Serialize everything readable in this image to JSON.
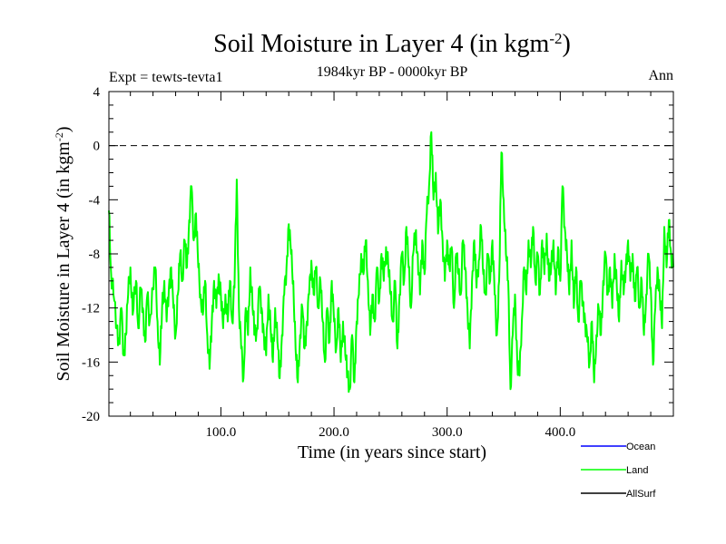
{
  "chart_data": {
    "type": "line",
    "title_main": "Soil Moisture in Layer 4 (in kgm",
    "title_sup": "-2",
    "title_close": ")",
    "subtitle": "1984kyr BP - 0000kyr BP",
    "expt_label": "Expt = tewts-tevta1",
    "season_label": "Ann",
    "xlabel": "Time (in years since start)",
    "ylabel_main": "Soil Moisture in Layer 4 (in kgm",
    "ylabel_sup": "-2",
    "ylabel_close": ")",
    "xlim": [
      1,
      500
    ],
    "ylim": [
      -20,
      4
    ],
    "x_ticks": [
      100,
      200,
      300,
      400
    ],
    "x_tick_labels": [
      "100.0",
      "200.0",
      "300.0",
      "400.0"
    ],
    "y_ticks": [
      4,
      0,
      -4,
      -8,
      -12,
      -16,
      -20
    ],
    "y_tick_labels": [
      "4",
      "0",
      "-4",
      "-8",
      "-12",
      "-16",
      "-20"
    ],
    "reference_line": {
      "y": 0,
      "style": "dashed"
    },
    "legend": [
      {
        "name": "Ocean",
        "color": "#0000ff"
      },
      {
        "name": "Land",
        "color": "#00ff00"
      },
      {
        "name": "AllSurf",
        "color": "#000000"
      }
    ],
    "series": [
      {
        "name": "Land",
        "color": "#00ff00",
        "anchors": [
          [
            1,
            -4.8
          ],
          [
            3,
            -9.5
          ],
          [
            5,
            -11
          ],
          [
            8,
            -13.5
          ],
          [
            10,
            -14.5
          ],
          [
            12,
            -12
          ],
          [
            14,
            -15.5
          ],
          [
            16,
            -14
          ],
          [
            18,
            -11
          ],
          [
            20,
            -9
          ],
          [
            22,
            -12.5
          ],
          [
            25,
            -10
          ],
          [
            27,
            -13.5
          ],
          [
            29,
            -10.5
          ],
          [
            31,
            -12
          ],
          [
            33,
            -14.5
          ],
          [
            35,
            -11
          ],
          [
            37,
            -13
          ],
          [
            40,
            -10.5
          ],
          [
            42,
            -9
          ],
          [
            44,
            -13
          ],
          [
            46,
            -16.2
          ],
          [
            48,
            -12
          ],
          [
            50,
            -10
          ],
          [
            52,
            -13
          ],
          [
            54,
            -10.5
          ],
          [
            56,
            -9
          ],
          [
            58,
            -12
          ],
          [
            60,
            -14
          ],
          [
            62,
            -11
          ],
          [
            64,
            -8
          ],
          [
            66,
            -10
          ],
          [
            68,
            -7
          ],
          [
            70,
            -9
          ],
          [
            72,
            -5.5
          ],
          [
            74,
            -3
          ],
          [
            76,
            -7
          ],
          [
            78,
            -5
          ],
          [
            80,
            -9
          ],
          [
            82,
            -11
          ],
          [
            84,
            -12.5
          ],
          [
            86,
            -10
          ],
          [
            88,
            -14
          ],
          [
            90,
            -16.5
          ],
          [
            92,
            -13
          ],
          [
            94,
            -10
          ],
          [
            96,
            -12
          ],
          [
            98,
            -9.5
          ],
          [
            100,
            -11
          ],
          [
            102,
            -13.5
          ],
          [
            104,
            -11
          ],
          [
            106,
            -13
          ],
          [
            108,
            -10
          ],
          [
            110,
            -13
          ],
          [
            112,
            -10.5
          ],
          [
            114,
            -2.5
          ],
          [
            116,
            -12
          ],
          [
            118,
            -15
          ],
          [
            120,
            -17.2
          ],
          [
            122,
            -12
          ],
          [
            124,
            -14
          ],
          [
            126,
            -9
          ],
          [
            128,
            -12
          ],
          [
            130,
            -14
          ],
          [
            132,
            -13.5
          ],
          [
            134,
            -10.5
          ],
          [
            136,
            -12
          ],
          [
            138,
            -14
          ],
          [
            140,
            -15.5
          ],
          [
            142,
            -11
          ],
          [
            144,
            -13.5
          ],
          [
            146,
            -16
          ],
          [
            148,
            -12
          ],
          [
            150,
            -14.5
          ],
          [
            152,
            -17.2
          ],
          [
            154,
            -14
          ],
          [
            156,
            -11
          ],
          [
            158,
            -9
          ],
          [
            160,
            -5.8
          ],
          [
            162,
            -8
          ],
          [
            164,
            -10
          ],
          [
            166,
            -15
          ],
          [
            168,
            -17.5
          ],
          [
            170,
            -14
          ],
          [
            172,
            -12
          ],
          [
            174,
            -15
          ],
          [
            176,
            -13
          ],
          [
            178,
            -11
          ],
          [
            180,
            -8.5
          ],
          [
            182,
            -11
          ],
          [
            184,
            -9
          ],
          [
            186,
            -12
          ],
          [
            188,
            -10
          ],
          [
            190,
            -13
          ],
          [
            192,
            -16
          ],
          [
            194,
            -12
          ],
          [
            196,
            -14.5
          ],
          [
            198,
            -10
          ],
          [
            200,
            -13
          ],
          [
            202,
            -15
          ],
          [
            204,
            -12
          ],
          [
            206,
            -16
          ],
          [
            208,
            -13
          ],
          [
            210,
            -15.5
          ],
          [
            212,
            -17
          ],
          [
            214,
            -18
          ],
          [
            216,
            -14
          ],
          [
            218,
            -17.5
          ],
          [
            220,
            -13
          ],
          [
            222,
            -11
          ],
          [
            224,
            -8
          ],
          [
            226,
            -9.5
          ],
          [
            228,
            -7
          ],
          [
            230,
            -10
          ],
          [
            232,
            -14
          ],
          [
            234,
            -11
          ],
          [
            236,
            -13
          ],
          [
            238,
            -9
          ],
          [
            240,
            -11.5
          ],
          [
            242,
            -8
          ],
          [
            244,
            -10
          ],
          [
            246,
            -7.5
          ],
          [
            248,
            -9
          ],
          [
            250,
            -11
          ],
          [
            252,
            -13
          ],
          [
            254,
            -10
          ],
          [
            256,
            -15
          ],
          [
            258,
            -11
          ],
          [
            260,
            -8
          ],
          [
            262,
            -10
          ],
          [
            264,
            -6
          ],
          [
            266,
            -9
          ],
          [
            268,
            -12
          ],
          [
            270,
            -8
          ],
          [
            272,
            -6.5
          ],
          [
            274,
            -8
          ],
          [
            276,
            -11
          ],
          [
            278,
            -7
          ],
          [
            280,
            -9.5
          ],
          [
            282,
            -5
          ],
          [
            284,
            -3
          ],
          [
            286,
            1
          ],
          [
            288,
            -4
          ],
          [
            290,
            -2
          ],
          [
            292,
            -6.5
          ],
          [
            294,
            -4
          ],
          [
            296,
            -7
          ],
          [
            298,
            -10
          ],
          [
            300,
            -7
          ],
          [
            302,
            -9
          ],
          [
            304,
            -7.5
          ],
          [
            306,
            -12
          ],
          [
            308,
            -8
          ],
          [
            310,
            -9.5
          ],
          [
            312,
            -11
          ],
          [
            314,
            -7
          ],
          [
            316,
            -9
          ],
          [
            318,
            -12
          ],
          [
            320,
            -15
          ],
          [
            322,
            -10
          ],
          [
            324,
            -7
          ],
          [
            326,
            -10.5
          ],
          [
            328,
            -8.5
          ],
          [
            330,
            -6
          ],
          [
            332,
            -9.5
          ],
          [
            334,
            -11
          ],
          [
            336,
            -8
          ],
          [
            338,
            -10
          ],
          [
            340,
            -7
          ],
          [
            342,
            -11
          ],
          [
            344,
            -14
          ],
          [
            346,
            -10
          ],
          [
            348,
            -0.5
          ],
          [
            350,
            -4
          ],
          [
            352,
            -8
          ],
          [
            354,
            -10
          ],
          [
            356,
            -18
          ],
          [
            358,
            -14
          ],
          [
            360,
            -11
          ],
          [
            362,
            -16
          ],
          [
            364,
            -17
          ],
          [
            366,
            -13
          ],
          [
            368,
            -9
          ],
          [
            370,
            -11
          ],
          [
            372,
            -7
          ],
          [
            374,
            -9
          ],
          [
            376,
            -6
          ],
          [
            378,
            -10
          ],
          [
            380,
            -8
          ],
          [
            382,
            -11
          ],
          [
            384,
            -7
          ],
          [
            386,
            -9.5
          ],
          [
            388,
            -6.5
          ],
          [
            390,
            -10
          ],
          [
            392,
            -9
          ],
          [
            394,
            -7
          ],
          [
            396,
            -11
          ],
          [
            398,
            -7.5
          ],
          [
            400,
            -10
          ],
          [
            402,
            -3
          ],
          [
            404,
            -6
          ],
          [
            406,
            -8
          ],
          [
            408,
            -11
          ],
          [
            410,
            -7
          ],
          [
            412,
            -12
          ],
          [
            414,
            -9
          ],
          [
            416,
            -13
          ],
          [
            418,
            -10
          ],
          [
            420,
            -11.5
          ],
          [
            422,
            -13
          ],
          [
            424,
            -14.5
          ],
          [
            426,
            -16
          ],
          [
            428,
            -13
          ],
          [
            430,
            -17.5
          ],
          [
            432,
            -14
          ],
          [
            434,
            -12
          ],
          [
            436,
            -14
          ],
          [
            438,
            -10
          ],
          [
            440,
            -8
          ],
          [
            442,
            -11
          ],
          [
            444,
            -9
          ],
          [
            446,
            -12
          ],
          [
            448,
            -8
          ],
          [
            450,
            -10.5
          ],
          [
            452,
            -13
          ],
          [
            454,
            -8.5
          ],
          [
            456,
            -11
          ],
          [
            458,
            -9
          ],
          [
            460,
            -7
          ],
          [
            462,
            -10
          ],
          [
            464,
            -8
          ],
          [
            466,
            -11.5
          ],
          [
            468,
            -9
          ],
          [
            470,
            -12
          ],
          [
            472,
            -10
          ],
          [
            474,
            -14
          ],
          [
            476,
            -11
          ],
          [
            478,
            -8
          ],
          [
            480,
            -10.5
          ],
          [
            482,
            -16.2
          ],
          [
            484,
            -12
          ],
          [
            486,
            -9
          ],
          [
            488,
            -11
          ],
          [
            490,
            -13.5
          ],
          [
            492,
            -6
          ],
          [
            494,
            -9
          ],
          [
            496,
            -5.5
          ],
          [
            498,
            -8
          ],
          [
            500,
            -9
          ]
        ]
      }
    ]
  }
}
